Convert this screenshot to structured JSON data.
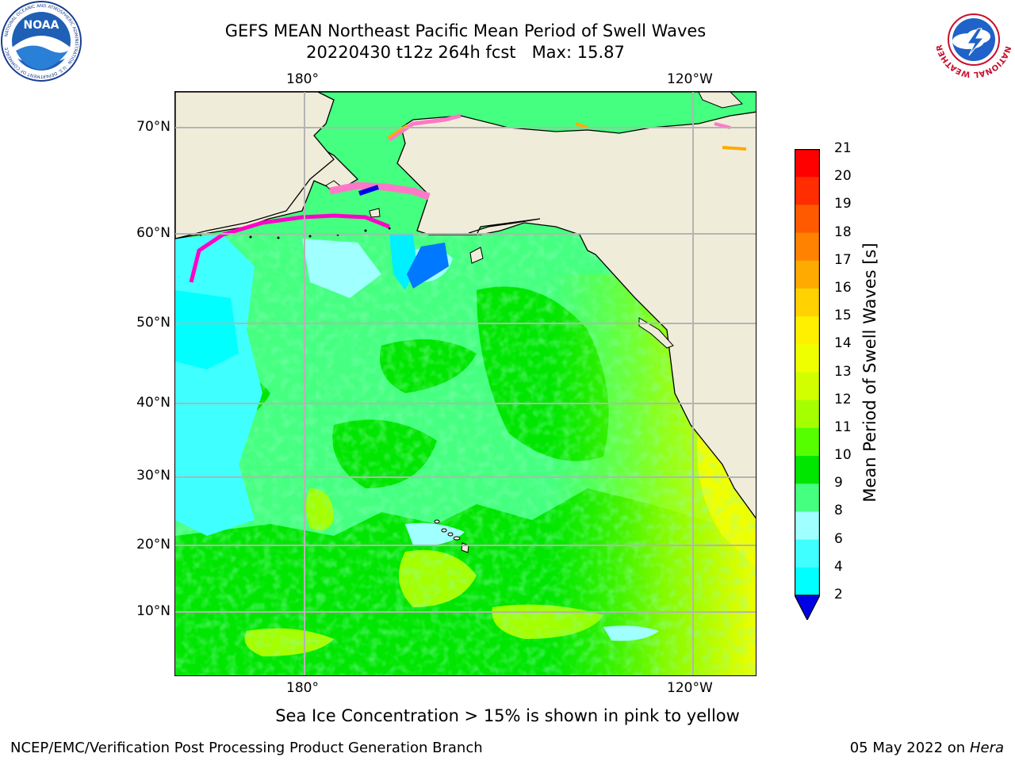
{
  "title": {
    "line1": "GEFS MEAN Northeast Pacific Mean Period of Swell Waves",
    "line2": "20220430 t12z 264h fcst   Max: 15.87"
  },
  "map": {
    "lon_labels_top": [
      "180°",
      "120°W"
    ],
    "lon_labels_bottom": [
      "180°",
      "120°W"
    ],
    "lat_labels": [
      "70°N",
      "60°N",
      "50°N",
      "40°N",
      "30°N",
      "20°N",
      "10°N"
    ],
    "colors": {
      "land": "#efedd9",
      "gridline": "#b4b4b4",
      "coast": "#000000"
    }
  },
  "colorbar": {
    "title": "Mean Period of Swell Waves [s]",
    "ticks": [
      "21",
      "20",
      "19",
      "18",
      "17",
      "16",
      "15",
      "14",
      "13",
      "12",
      "11",
      "10",
      "9",
      "8",
      "6",
      "4",
      "2"
    ],
    "colors": [
      "#ff0000",
      "#ff2d00",
      "#ff5a00",
      "#ff8200",
      "#ffaa00",
      "#ffd200",
      "#fff000",
      "#f0ff00",
      "#d2ff00",
      "#a5ff00",
      "#55ff00",
      "#00e600",
      "#45ff80",
      "#a0ffff",
      "#40ffff",
      "#00ffff",
      "#00f0ff",
      "#0078ff"
    ],
    "extend_color": "#0000e6"
  },
  "note": "Sea Ice Concentration > 15% is shown in pink to yellow",
  "footer": {
    "left": "NCEP/EMC/Verification Post Processing Product Generation Branch",
    "date": "05 May 2022 on",
    "host": "Hera"
  },
  "logos": {
    "left": {
      "icon": "noaa-logo-icon",
      "text": "NOAA"
    },
    "right": {
      "icon": "nws-logo-icon",
      "text": "NATIONAL WEATHER SERVICE"
    }
  }
}
